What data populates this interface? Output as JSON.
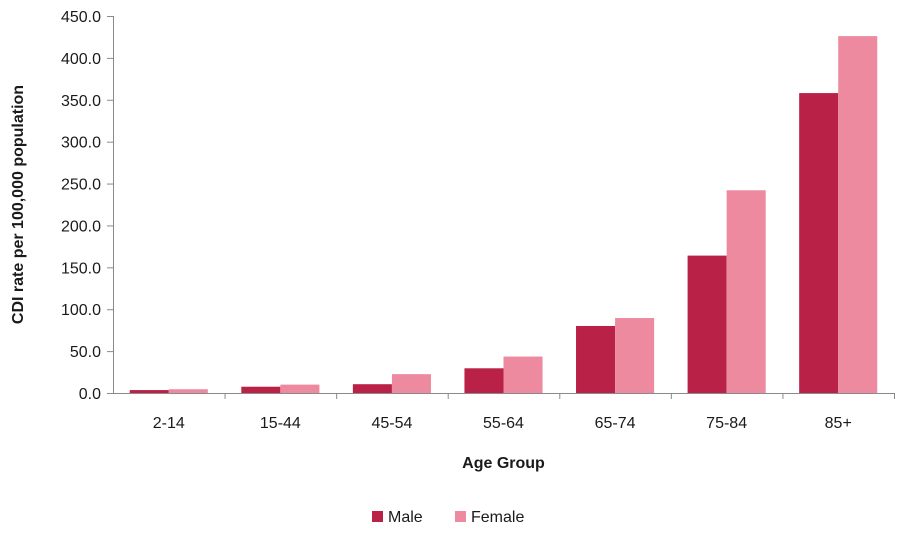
{
  "chart_data": {
    "type": "bar",
    "title": "",
    "xlabel": "Age Group",
    "ylabel": "CDI rate  per 100,000 population",
    "categories": [
      "2-14",
      "15-44",
      "45-54",
      "55-64",
      "65-74",
      "75-84",
      "85+"
    ],
    "series": [
      {
        "name": "Male",
        "color": "#b92246",
        "values": [
          3.5,
          7.5,
          10.5,
          29.5,
          80.0,
          164.0,
          358.0
        ]
      },
      {
        "name": "Female",
        "color": "#ed8aa0",
        "values": [
          4.5,
          10.0,
          22.5,
          43.5,
          89.5,
          242.0,
          426.0
        ]
      }
    ],
    "ylim": [
      0,
      450
    ],
    "yticks": [
      "0.0",
      "50.0",
      "100.0",
      "150.0",
      "200.0",
      "250.0",
      "300.0",
      "350.0",
      "400.0",
      "450.0"
    ],
    "grid": false,
    "legend_position": "bottom-center"
  }
}
